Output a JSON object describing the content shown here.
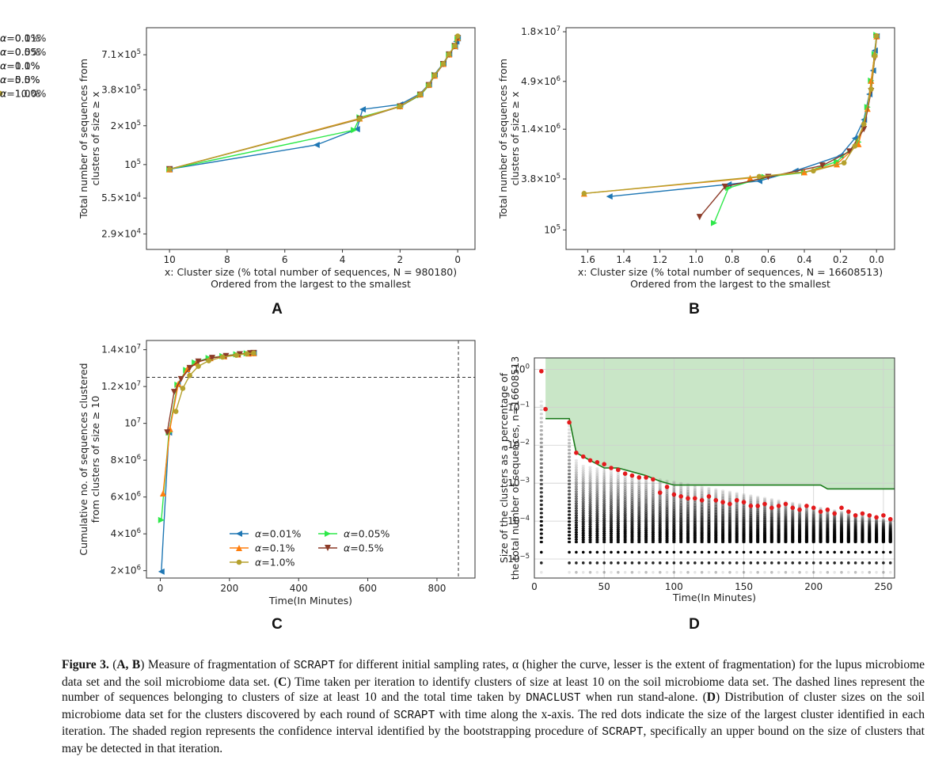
{
  "panel_labels": {
    "A": "A",
    "B": "B",
    "C": "C",
    "D": "D"
  },
  "colors": {
    "blue": "#1f77b4",
    "green": "#2ee84a",
    "orange": "#ff7f0e",
    "brown": "#8c3b28",
    "olive": "#b5a12d",
    "darkgreen": "#1a7a1a",
    "shade": "#c9e6c7",
    "red": "#e41a1c"
  },
  "chart_data": [
    {
      "id": "A",
      "type": "line",
      "xlabel": "x: Cluster size (% total number of sequences, N = 980180)",
      "xlabel2": "Ordered from the largest to the smallest",
      "ylabel": "Total number of sequences from",
      "ylabel2": "clusters of size ≥ x",
      "xlim": [
        10.8,
        -0.6
      ],
      "y_scale": "log",
      "ylim": [
        22000,
        1150000
      ],
      "xticks": [
        {
          "v": 10,
          "t": "10"
        },
        {
          "v": 8,
          "t": "8"
        },
        {
          "v": 6,
          "t": "6"
        },
        {
          "v": 4,
          "t": "4"
        },
        {
          "v": 2,
          "t": "2"
        },
        {
          "v": 0,
          "t": "0"
        }
      ],
      "yticks": [
        {
          "v": 710000,
          "b": "7.1×10",
          "e": "5"
        },
        {
          "v": 380000,
          "b": "3.8×10",
          "e": "5"
        },
        {
          "v": 200000,
          "b": "2×10",
          "e": "5"
        },
        {
          "v": 100000,
          "b": "10",
          "e": "5"
        },
        {
          "v": 55000,
          "b": "5.5×10",
          "e": "4"
        },
        {
          "v": 29000,
          "b": "2.9×10",
          "e": "4"
        }
      ],
      "legend": "top-left",
      "series": [
        {
          "name": "α=0.1%",
          "color": "#1f77b4",
          "marker": "tri-left",
          "x": [
            10,
            4.9,
            3.5,
            3.3,
            2.0,
            1.3,
            1.0,
            0.8,
            0.5,
            0.3,
            0.1,
            0.05,
            0.0
          ],
          "y": [
            92000,
            142000,
            188000,
            268000,
            292000,
            355000,
            420000,
            500000,
            610000,
            720000,
            820000,
            900000,
            950000
          ]
        },
        {
          "name": "α=0.5%",
          "color": "#2ee84a",
          "marker": "tri-right",
          "x": [
            10,
            3.6,
            3.4,
            2.0,
            1.3,
            1.0,
            0.8,
            0.5,
            0.3,
            0.1,
            0.0
          ],
          "y": [
            92000,
            185000,
            232000,
            282000,
            345000,
            410000,
            495000,
            600000,
            710000,
            830000,
            940000
          ]
        },
        {
          "name": "α=1.0%",
          "color": "#ff7f0e",
          "marker": "tri-up",
          "x": [
            10,
            3.4,
            2.0,
            1.3,
            1.0,
            0.8,
            0.5,
            0.3,
            0.1,
            0.0
          ],
          "y": [
            92000,
            228000,
            284000,
            350000,
            415000,
            490000,
            605000,
            715000,
            830000,
            960000
          ]
        },
        {
          "name": "α=5.0%",
          "color": "#8c3b28",
          "marker": "tri-down",
          "x": [
            10,
            3.4,
            2.0,
            1.3,
            1.0,
            0.8,
            0.5,
            0.3,
            0.1,
            0.0
          ],
          "y": [
            92000,
            225000,
            282000,
            348000,
            412000,
            488000,
            600000,
            712000,
            828000,
            955000
          ]
        },
        {
          "name": "α=10.0%",
          "color": "#b5a12d",
          "marker": "circle",
          "x": [
            10,
            3.4,
            2.0,
            1.3,
            1.0,
            0.8,
            0.5,
            0.3,
            0.1,
            0.0
          ],
          "y": [
            92000,
            226000,
            283000,
            350000,
            414000,
            492000,
            605000,
            718000,
            835000,
            990000
          ]
        }
      ]
    },
    {
      "id": "B",
      "type": "line",
      "xlabel": "x: Cluster size (% total number of sequences, N = 16608513)",
      "xlabel2": "Ordered from the largest to the smallest",
      "ylabel": "Total number of sequences from",
      "ylabel2": "clusters of size ≥ x",
      "xlim": [
        1.72,
        -0.1
      ],
      "y_scale": "log",
      "ylim": [
        60000,
        20000000
      ],
      "xticks": [
        {
          "v": 1.6,
          "t": "1.6"
        },
        {
          "v": 1.4,
          "t": "1.4"
        },
        {
          "v": 1.2,
          "t": "1.2"
        },
        {
          "v": 1.0,
          "t": "1.0"
        },
        {
          "v": 0.8,
          "t": "0.8"
        },
        {
          "v": 0.6,
          "t": "0.6"
        },
        {
          "v": 0.4,
          "t": "0.4"
        },
        {
          "v": 0.2,
          "t": "0.2"
        },
        {
          "v": 0.0,
          "t": "0.0"
        }
      ],
      "yticks": [
        {
          "v": 18000000,
          "b": "1.8×10",
          "e": "7"
        },
        {
          "v": 4900000,
          "b": "4.9×10",
          "e": "6"
        },
        {
          "v": 1400000,
          "b": "1.4×10",
          "e": "6"
        },
        {
          "v": 380000,
          "b": "3.8×10",
          "e": "5"
        },
        {
          "v": 100000,
          "b": "10",
          "e": "5"
        }
      ],
      "legend": "top-left",
      "series": [
        {
          "name": "α=0.01%",
          "color": "#1f77b4",
          "marker": "tri-left",
          "x": [
            1.48,
            0.82,
            0.65,
            0.45,
            0.2,
            0.12,
            0.07,
            0.04,
            0.02,
            0.01,
            0.0
          ],
          "y": [
            240000,
            330000,
            360000,
            470000,
            700000,
            1100000,
            1800000,
            3500000,
            6500000,
            11000000,
            16000000
          ]
        },
        {
          "name": "α=0.05%",
          "color": "#2ee84a",
          "marker": "tri-right",
          "x": [
            0.9,
            0.82,
            0.62,
            0.4,
            0.22,
            0.1,
            0.05,
            0.03,
            0.01,
            0.0
          ],
          "y": [
            120000,
            300000,
            400000,
            450000,
            600000,
            1000000,
            2500000,
            5000000,
            10000000,
            16500000
          ]
        },
        {
          "name": "α=0.1%",
          "color": "#ff7f0e",
          "marker": "tri-up",
          "x": [
            1.62,
            0.7,
            0.4,
            0.22,
            0.1,
            0.05,
            0.03,
            0.01,
            0.0
          ],
          "y": [
            260000,
            390000,
            455000,
            560000,
            950000,
            2400000,
            5000000,
            10000000,
            16000000
          ]
        },
        {
          "name": "α=0.5%",
          "color": "#8c3b28",
          "marker": "tri-down",
          "x": [
            0.98,
            0.84,
            0.6,
            0.3,
            0.15,
            0.07,
            0.03,
            0.01,
            0.0
          ],
          "y": [
            140000,
            310000,
            400000,
            540000,
            780000,
            1400000,
            3800000,
            9000000,
            15500000
          ]
        },
        {
          "name": "α=1.0%",
          "color": "#b5a12d",
          "marker": "circle",
          "x": [
            1.62,
            0.65,
            0.35,
            0.18,
            0.12,
            0.07,
            0.03,
            0.01,
            0.0
          ],
          "y": [
            260000,
            405000,
            470000,
            580000,
            900000,
            1600000,
            4000000,
            9500000,
            16200000
          ]
        }
      ]
    },
    {
      "id": "C",
      "type": "line",
      "xlabel": "Time(In Minutes)",
      "ylabel": "Cumulative no. of sequences clustered",
      "ylabel2": "from clusters of size ≥ 10",
      "xlim": [
        -40,
        910
      ],
      "ylim": [
        1600000,
        14500000
      ],
      "xticks": [
        {
          "v": 0,
          "t": "0"
        },
        {
          "v": 200,
          "t": "200"
        },
        {
          "v": 400,
          "t": "400"
        },
        {
          "v": 600,
          "t": "600"
        },
        {
          "v": 800,
          "t": "800"
        }
      ],
      "yticks": [
        {
          "v": 14000000,
          "b": "1.4×10",
          "e": "7"
        },
        {
          "v": 12000000,
          "b": "1.2×10",
          "e": "7"
        },
        {
          "v": 10000000,
          "b": "10",
          "e": "7"
        },
        {
          "v": 8000000,
          "b": "8×10",
          "e": "6"
        },
        {
          "v": 6000000,
          "b": "6×10",
          "e": "6"
        },
        {
          "v": 4000000,
          "b": "4×10",
          "e": "6"
        },
        {
          "v": 2000000,
          "b": "2×10",
          "e": "6"
        }
      ],
      "hline": 12500000,
      "vline": 862,
      "legend": "lower-right",
      "series": [
        {
          "name": "α=0.01%",
          "color": "#1f77b4",
          "marker": "tri-left",
          "x": [
            3,
            25,
            50,
            75,
            100,
            140,
            180,
            220,
            250,
            270
          ],
          "y": [
            1950000,
            9500000,
            12100000,
            12900000,
            13300000,
            13550000,
            13650000,
            13750000,
            13800000,
            13820000
          ]
        },
        {
          "name": "α=0.05%",
          "color": "#2ee84a",
          "marker": "tri-right",
          "x": [
            3,
            25,
            50,
            75,
            100,
            140,
            180,
            220,
            250,
            270
          ],
          "y": [
            4750000,
            9500000,
            12100000,
            12900000,
            13300000,
            13550000,
            13650000,
            13750000,
            13800000,
            13820000
          ]
        },
        {
          "name": "α=0.1%",
          "color": "#ff7f0e",
          "marker": "tri-up",
          "x": [
            8,
            28,
            52,
            78,
            105,
            145,
            185,
            225,
            255,
            270
          ],
          "y": [
            6200000,
            9700000,
            12150000,
            12950000,
            13300000,
            13550000,
            13650000,
            13750000,
            13800000,
            13820000
          ]
        },
        {
          "name": "α=0.5%",
          "color": "#8c3b28",
          "marker": "tri-down",
          "x": [
            20,
            40,
            60,
            85,
            110,
            150,
            190,
            230,
            260,
            270
          ],
          "y": [
            9500000,
            11700000,
            12400000,
            13000000,
            13350000,
            13550000,
            13650000,
            13750000,
            13800000,
            13820000
          ]
        },
        {
          "name": "α=1.0%",
          "color": "#b5a12d",
          "marker": "circle",
          "x": [
            45,
            65,
            85,
            110,
            140,
            180,
            220,
            250,
            270
          ],
          "y": [
            10650000,
            11900000,
            12600000,
            13100000,
            13400000,
            13600000,
            13700000,
            13780000,
            13820000
          ]
        }
      ]
    },
    {
      "id": "D",
      "type": "scatter",
      "xlabel": "Time(In Minutes)",
      "ylabel": "Size of the clusters as a percentage of",
      "ylabel2": "the total number of sequences, n=16608513",
      "xlim": [
        0,
        258
      ],
      "y_scale": "log",
      "ylim_exp": [
        -5.5,
        0.3
      ],
      "xticks": [
        {
          "v": 0,
          "t": "0"
        },
        {
          "v": 50,
          "t": "50"
        },
        {
          "v": 100,
          "t": "100"
        },
        {
          "v": 150,
          "t": "150"
        },
        {
          "v": 200,
          "t": "200"
        },
        {
          "v": 250,
          "t": "250"
        }
      ],
      "yticks": [
        {
          "v": 0,
          "b": "10",
          "e": "0"
        },
        {
          "v": -1,
          "b": "10",
          "e": "−1"
        },
        {
          "v": -2,
          "b": "10",
          "e": "−2"
        },
        {
          "v": -3,
          "b": "10",
          "e": "−3"
        },
        {
          "v": -4,
          "b": "10",
          "e": "−4"
        },
        {
          "v": -5,
          "b": "10",
          "e": "−5"
        }
      ],
      "upper_bound_x": [
        8,
        25,
        30,
        40,
        50,
        60,
        70,
        80,
        90,
        100,
        150,
        200,
        205,
        210,
        258
      ],
      "upper_bound_y_exp": [
        -1.3,
        -1.3,
        -2.2,
        -2.4,
        -2.6,
        -2.6,
        -2.7,
        -2.8,
        -2.95,
        -3.05,
        -3.05,
        -3.05,
        -3.05,
        -3.15,
        -3.15
      ],
      "largest_x": [
        5,
        8,
        25,
        30,
        35,
        40,
        45,
        50,
        55,
        60,
        65,
        70,
        75,
        80,
        85,
        90,
        95,
        100,
        105,
        110,
        115,
        120,
        125,
        130,
        135,
        140,
        145,
        150,
        155,
        160,
        165,
        170,
        175,
        180,
        185,
        190,
        195,
        200,
        205,
        210,
        215,
        220,
        225,
        230,
        235,
        240,
        245,
        250,
        255
      ],
      "largest_y_exp": [
        -0.05,
        -1.05,
        -1.4,
        -2.2,
        -2.3,
        -2.4,
        -2.45,
        -2.5,
        -2.6,
        -2.65,
        -2.75,
        -2.8,
        -2.85,
        -2.85,
        -2.9,
        -3.25,
        -3.1,
        -3.3,
        -3.35,
        -3.4,
        -3.4,
        -3.45,
        -3.35,
        -3.45,
        -3.5,
        -3.55,
        -3.45,
        -3.5,
        -3.6,
        -3.6,
        -3.55,
        -3.65,
        -3.6,
        -3.55,
        -3.65,
        -3.7,
        -3.6,
        -3.65,
        -3.75,
        -3.7,
        -3.8,
        -3.65,
        -3.75,
        -3.85,
        -3.8,
        -3.85,
        -3.9,
        -3.85,
        -3.95
      ]
    }
  ],
  "caption": {
    "fig": "Figure 3.",
    "s1": "(",
    "a_b": "A, B",
    "s2": ") Measure of fragmentation of ",
    "scrapt1": "SCRAPT",
    "s3": " for different initial sampling rates, α (higher the curve, lesser is the extent of fragmentation) for the lupus microbiome data set and the soil microbiome data set. (",
    "c": "C",
    "s4": ") Time taken per iteration to identify clusters of size at least 10 on the soil microbiome data set. The dashed lines represent the number of sequences belonging to clusters of size at least 10 and the total time taken by ",
    "dnaclust": "DNACLUST",
    "s5": " when run stand-alone. (",
    "d": "D",
    "s6": ") Distribution of cluster sizes on the soil microbiome data set for the clusters discovered by each round of ",
    "scrapt2": "SCRAPT",
    "s7": " with time along the x-axis. The red dots indicate the size of the largest cluster identified in each iteration. The shaded region represents the confidence interval identified by the bootstrapping procedure of ",
    "scrapt3": "SCRAPT",
    "s8": ", specifically an upper bound on the size of clusters that may be detected in that iteration."
  }
}
